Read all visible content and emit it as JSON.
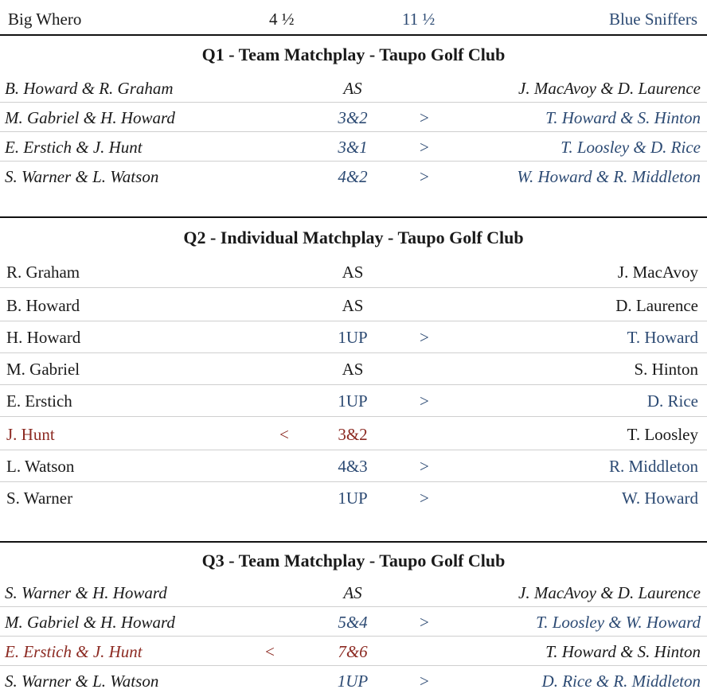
{
  "header": {
    "team_left": "Big Whero",
    "score_left": "4 ½",
    "score_right": "11 ½",
    "team_right": "Blue Sniffers"
  },
  "sections": [
    {
      "title": "Q1 - Team  Matchplay - Taupo Golf Club",
      "rows": [
        {
          "left": "B. Howard & R. Graham",
          "result": "AS",
          "winner": "none",
          "right": "J. MacAvoy & D. Laurence"
        },
        {
          "left": "M. Gabriel & H. Howard",
          "result": "3&2",
          "winner": "right",
          "arrow": ">",
          "right": "T. Howard & S. Hinton"
        },
        {
          "left": "E. Erstich & J. Hunt",
          "result": "3&1",
          "winner": "right",
          "arrow": ">",
          "right": "T. Loosley & D. Rice"
        },
        {
          "left": "S. Warner & L. Watson",
          "result": "4&2",
          "winner": "right",
          "arrow": ">",
          "right": "W. Howard & R. Middleton"
        }
      ]
    },
    {
      "title": "Q2 - Individual  Matchplay - Taupo Golf Club",
      "rows": [
        {
          "left": "R. Graham",
          "result": "AS",
          "winner": "none",
          "right": "J. MacAvoy"
        },
        {
          "left": "B. Howard",
          "result": "AS",
          "winner": "none",
          "right": "D. Laurence"
        },
        {
          "left": "H. Howard",
          "result": "1UP",
          "winner": "right",
          "arrow": ">",
          "right": "T. Howard"
        },
        {
          "left": "M. Gabriel",
          "result": "AS",
          "winner": "none",
          "right": "S. Hinton"
        },
        {
          "left": "E. Erstich",
          "result": "1UP",
          "winner": "right",
          "arrow": ">",
          "right": "D. Rice"
        },
        {
          "left": "J. Hunt",
          "result": "3&2",
          "winner": "left",
          "arrow": "<",
          "right": "T. Loosley"
        },
        {
          "left": "L. Watson",
          "result": "4&3",
          "winner": "right",
          "arrow": ">",
          "right": "R. Middleton"
        },
        {
          "left": "S. Warner",
          "result": "1UP",
          "winner": "right",
          "arrow": ">",
          "right": "W. Howard"
        }
      ]
    },
    {
      "title": "Q3 - Team  Matchplay - Taupo Golf Club",
      "rows": [
        {
          "left": "S. Warner & H. Howard",
          "result": "AS",
          "winner": "none",
          "right": "J. MacAvoy & D. Laurence"
        },
        {
          "left": "M. Gabriel & H. Howard",
          "result": "5&4",
          "winner": "right",
          "arrow": ">",
          "right": "T. Loosley & W. Howard"
        },
        {
          "left": "E. Erstich & J. Hunt",
          "result": "7&6",
          "winner": "left",
          "arrow": "<",
          "right": "T. Howard & S. Hinton"
        },
        {
          "left": "S. Warner & L. Watson",
          "result": "1UP",
          "winner": "right",
          "arrow": ">",
          "right": "D. Rice & R. Middleton"
        }
      ]
    }
  ],
  "colors": {
    "blue_team": "#2c4a73",
    "red_team": "#8c2a22",
    "text": "#1a1a1a"
  }
}
